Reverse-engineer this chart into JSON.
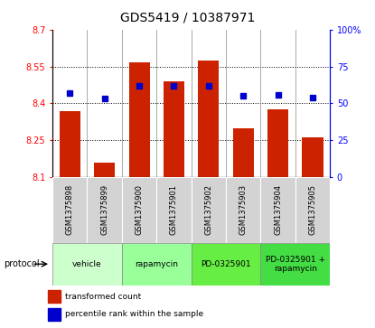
{
  "title": "GDS5419 / 10387971",
  "samples": [
    "GSM1375898",
    "GSM1375899",
    "GSM1375900",
    "GSM1375901",
    "GSM1375902",
    "GSM1375903",
    "GSM1375904",
    "GSM1375905"
  ],
  "bar_values": [
    8.37,
    8.16,
    8.565,
    8.49,
    8.575,
    8.3,
    8.375,
    8.26
  ],
  "bar_base": 8.1,
  "percentile_values": [
    57,
    53,
    62,
    62,
    62,
    55,
    56,
    54
  ],
  "ylim_left": [
    8.1,
    8.7
  ],
  "ylim_right": [
    0,
    100
  ],
  "yticks_left": [
    8.1,
    8.25,
    8.4,
    8.55,
    8.7
  ],
  "yticks_right": [
    0,
    25,
    50,
    75,
    100
  ],
  "bar_color": "#CC2200",
  "dot_color": "#0000CC",
  "bar_width": 0.6,
  "protocols": [
    {
      "label": "vehicle",
      "cols": [
        0,
        1
      ],
      "color": "#ccffcc"
    },
    {
      "label": "rapamycin",
      "cols": [
        2,
        3
      ],
      "color": "#99ff99"
    },
    {
      "label": "PD-0325901",
      "cols": [
        4,
        5
      ],
      "color": "#66ee44"
    },
    {
      "label": "PD-0325901 +\nrapamycin",
      "cols": [
        6,
        7
      ],
      "color": "#44dd44"
    }
  ],
  "protocol_label": "protocol",
  "legend_bar_label": "transformed count",
  "legend_dot_label": "percentile rank within the sample",
  "title_fontsize": 10,
  "tick_fontsize": 7,
  "label_fontsize": 6
}
